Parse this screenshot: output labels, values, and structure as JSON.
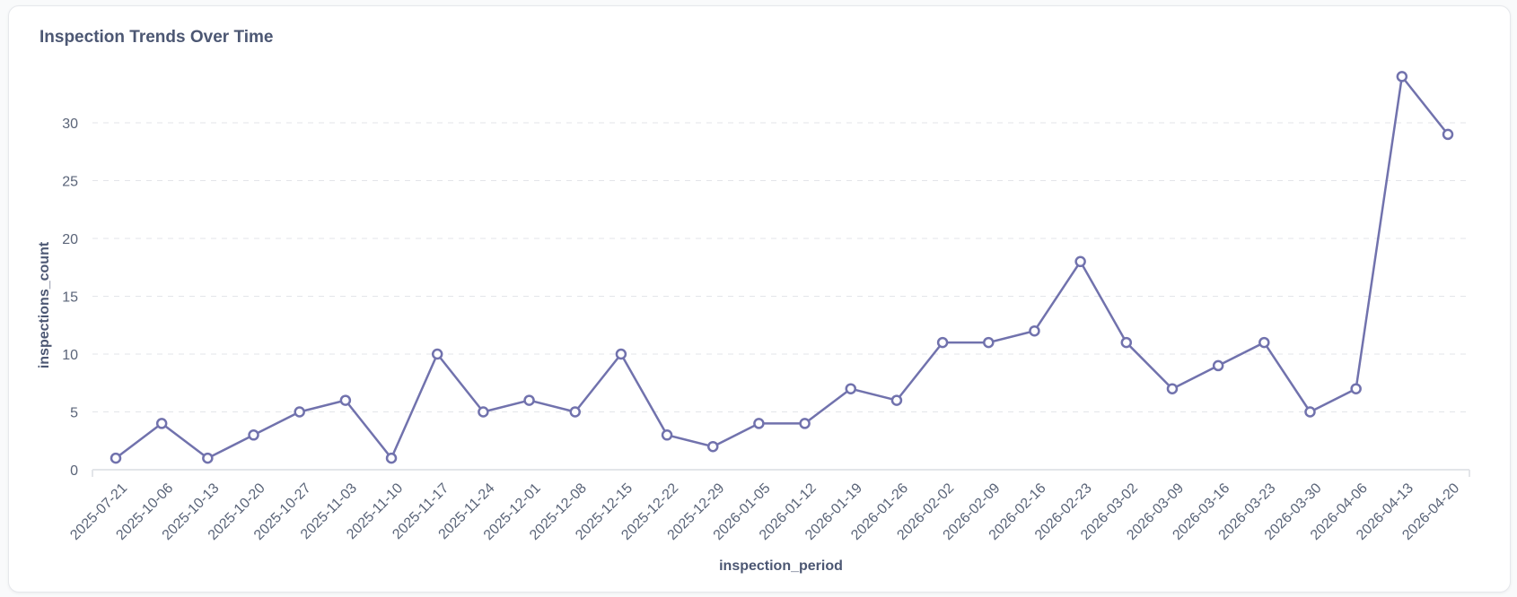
{
  "chart_data": {
    "type": "line",
    "title": "Inspection Trends Over Time",
    "xlabel": "inspection_period",
    "ylabel": "inspections_count",
    "ylim": [
      0,
      35
    ],
    "yticks": [
      0,
      5,
      10,
      15,
      20,
      25,
      30
    ],
    "grid": true,
    "color": "#7172ad",
    "categories": [
      "2025-07-21",
      "2025-10-06",
      "2025-10-13",
      "2025-10-20",
      "2025-10-27",
      "2025-11-03",
      "2025-11-10",
      "2025-11-17",
      "2025-11-24",
      "2025-12-01",
      "2025-12-08",
      "2025-12-15",
      "2025-12-22",
      "2025-12-29",
      "2026-01-05",
      "2026-01-12",
      "2026-01-19",
      "2026-01-26",
      "2026-02-02",
      "2026-02-09",
      "2026-02-16",
      "2026-02-23",
      "2026-03-02",
      "2026-03-09",
      "2026-03-16",
      "2026-03-23",
      "2026-03-30",
      "2026-04-06",
      "2026-04-13",
      "2026-04-20"
    ],
    "series": [
      {
        "name": "inspections_count",
        "values": [
          1,
          4,
          1,
          3,
          5,
          6,
          1,
          10,
          5,
          6,
          5,
          10,
          3,
          2,
          4,
          4,
          7,
          6,
          11,
          11,
          12,
          18,
          11,
          7,
          9,
          11,
          5,
          7,
          34,
          29
        ]
      }
    ]
  }
}
